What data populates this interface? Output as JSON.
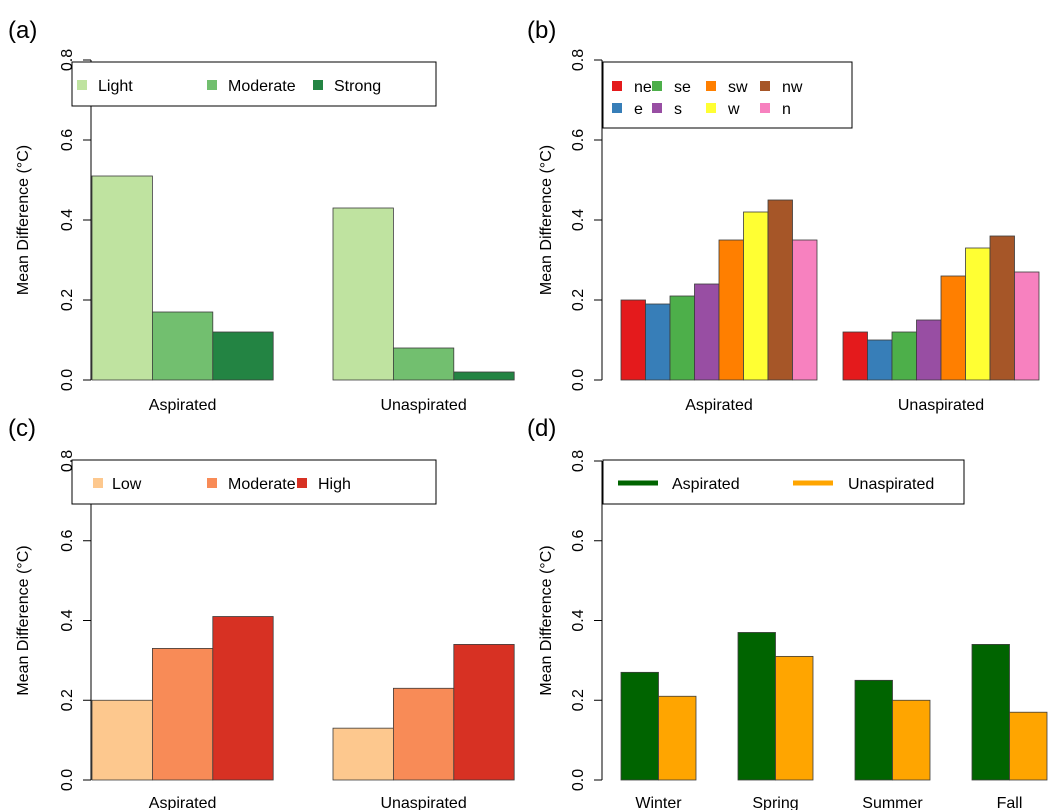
{
  "figure": {
    "background": "#ffffff"
  },
  "chart_data": [
    {
      "panel_label": "(a)",
      "type": "bar",
      "ylabel": "Mean Difference (°C)",
      "ylim": [
        0,
        0.8
      ],
      "yticks": [
        "0.0",
        "0.2",
        "0.4",
        "0.6",
        "0.8"
      ],
      "ytick_values": [
        0,
        0.2,
        0.4,
        0.6,
        0.8
      ],
      "categories": [
        "Aspirated",
        "Unaspirated"
      ],
      "legend_position": "top",
      "series": [
        {
          "name": "Light",
          "color": "#bfe3a0",
          "values": [
            0.51,
            0.43
          ]
        },
        {
          "name": "Moderate",
          "color": "#72bf6f",
          "values": [
            0.17,
            0.08
          ]
        },
        {
          "name": "Strong",
          "color": "#238443",
          "values": [
            0.12,
            0.02
          ]
        }
      ]
    },
    {
      "panel_label": "(b)",
      "type": "bar",
      "ylabel": "Mean Difference (°C)",
      "ylim": [
        0,
        0.8
      ],
      "yticks": [
        "0.0",
        "0.2",
        "0.4",
        "0.6",
        "0.8"
      ],
      "ytick_values": [
        0,
        0.2,
        0.4,
        0.6,
        0.8
      ],
      "categories": [
        "Aspirated",
        "Unaspirated"
      ],
      "legend_position": "top-left",
      "series": [
        {
          "name": "ne",
          "color": "#e41a1c",
          "values": [
            0.2,
            0.12
          ]
        },
        {
          "name": "e",
          "color": "#377eb8",
          "values": [
            0.19,
            0.1
          ]
        },
        {
          "name": "se",
          "color": "#4daf4a",
          "values": [
            0.21,
            0.12
          ]
        },
        {
          "name": "s",
          "color": "#984ea3",
          "values": [
            0.24,
            0.15
          ]
        },
        {
          "name": "sw",
          "color": "#ff7f00",
          "values": [
            0.35,
            0.26
          ]
        },
        {
          "name": "w",
          "color": "#ffff33",
          "values": [
            0.42,
            0.33
          ]
        },
        {
          "name": "nw",
          "color": "#a65628",
          "values": [
            0.45,
            0.36
          ]
        },
        {
          "name": "n",
          "color": "#f781bf",
          "values": [
            0.35,
            0.27
          ]
        }
      ]
    },
    {
      "panel_label": "(c)",
      "type": "bar",
      "ylabel": "Mean Difference (°C)",
      "ylim": [
        0,
        0.8
      ],
      "yticks": [
        "0.0",
        "0.2",
        "0.4",
        "0.6",
        "0.8"
      ],
      "ytick_values": [
        0,
        0.2,
        0.4,
        0.6,
        0.8
      ],
      "categories": [
        "Aspirated",
        "Unaspirated"
      ],
      "legend_position": "top",
      "series": [
        {
          "name": "Low",
          "color": "#fdc88e",
          "values": [
            0.2,
            0.13
          ]
        },
        {
          "name": "Moderate",
          "color": "#f88b57",
          "values": [
            0.33,
            0.23
          ]
        },
        {
          "name": "High",
          "color": "#d73123",
          "values": [
            0.41,
            0.34
          ]
        }
      ]
    },
    {
      "panel_label": "(d)",
      "type": "bar",
      "ylabel": "Mean Difference (°C)",
      "ylim": [
        0,
        0.8
      ],
      "yticks": [
        "0.0",
        "0.2",
        "0.4",
        "0.6",
        "0.8"
      ],
      "ytick_values": [
        0,
        0.2,
        0.4,
        0.6,
        0.8
      ],
      "categories": [
        "Winter",
        "Spring",
        "Summer",
        "Fall"
      ],
      "legend_position": "top",
      "legend_style": "line",
      "series": [
        {
          "name": "Aspirated",
          "color": "#006400",
          "values": [
            0.27,
            0.37,
            0.25,
            0.34
          ]
        },
        {
          "name": "Unaspirated",
          "color": "#ffa500",
          "values": [
            0.21,
            0.31,
            0.2,
            0.17
          ]
        }
      ]
    }
  ]
}
